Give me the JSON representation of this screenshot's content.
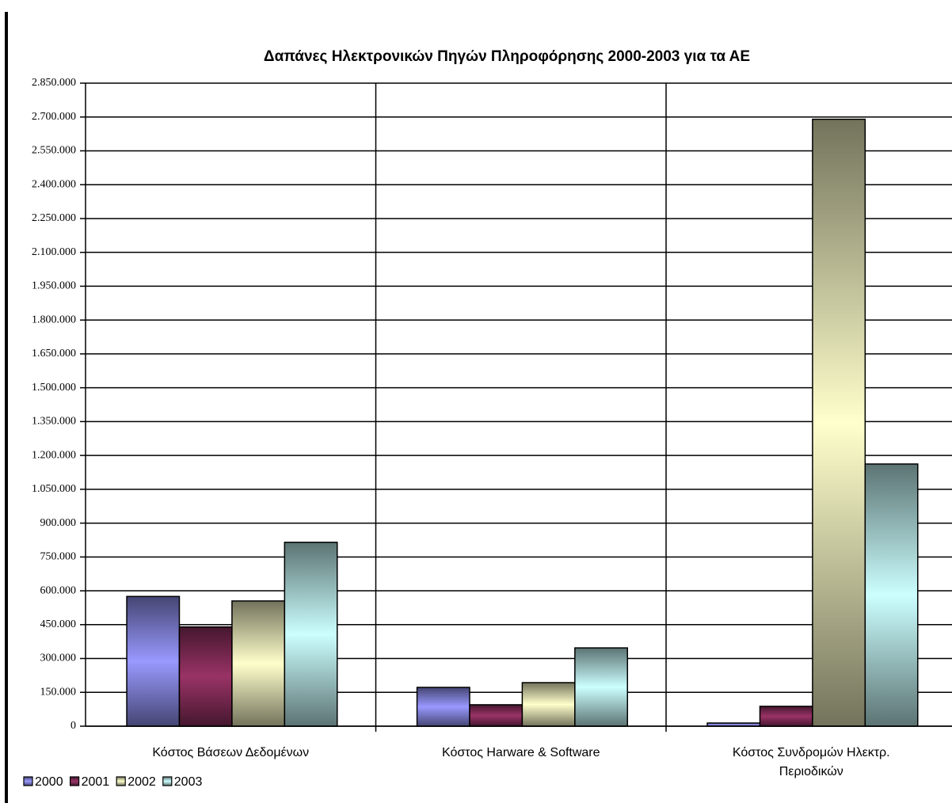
{
  "chart_data": {
    "type": "bar",
    "title": "Δαπάνες Ηλεκτρονικών Πηγών Πληροφόρησης 2000-2003 για τα ΑΕ",
    "categories": [
      "Κόστος Βάσεων Δεδομένων",
      "Κόστος Harware & Software",
      "Κόστος Συνδρομών Ηλεκτρ. Περιοδικών"
    ],
    "series": [
      {
        "name": "2000",
        "color": "#9999ff",
        "values": [
          575000,
          172000,
          14000
        ]
      },
      {
        "name": "2001",
        "color": "#993366",
        "values": [
          440000,
          95000,
          88000
        ]
      },
      {
        "name": "2002",
        "color": "#ffffcc",
        "values": [
          555000,
          193000,
          2690000
        ]
      },
      {
        "name": "2003",
        "color": "#ccffff",
        "values": [
          815000,
          347000,
          1162000
        ]
      }
    ],
    "ylim": [
      0,
      2850000
    ],
    "yticks": [
      0,
      {
        "value": 150000,
        "label": "150.000"
      },
      {
        "value": 300000,
        "label": "300.000"
      },
      {
        "value": 450000,
        "label": "450.000"
      },
      {
        "value": 600000,
        "label": "600.000"
      },
      {
        "value": 750000,
        "label": "750.000"
      },
      {
        "value": 900000,
        "label": "900.000"
      },
      {
        "value": 1050000,
        "label": "1.050.000"
      },
      {
        "value": 1200000,
        "label": "1.200.000"
      },
      {
        "value": 1350000,
        "label": "1.350.000"
      },
      {
        "value": 1500000,
        "label": "1.500.000"
      },
      {
        "value": 1650000,
        "label": "1.650.000"
      },
      {
        "value": 1800000,
        "label": "1.800.000"
      },
      {
        "value": 1950000,
        "label": "1.950.000"
      },
      {
        "value": 2100000,
        "label": "2.100.000"
      },
      {
        "value": 2250000,
        "label": "2.250.000"
      },
      {
        "value": 2400000,
        "label": "2.400.000"
      },
      {
        "value": 2550000,
        "label": "2.550.000"
      },
      {
        "value": 2700000,
        "label": "2.700.000"
      },
      {
        "value": 2850000,
        "label": "2.850.000"
      }
    ],
    "grid": true,
    "legend": "bottom-left"
  }
}
